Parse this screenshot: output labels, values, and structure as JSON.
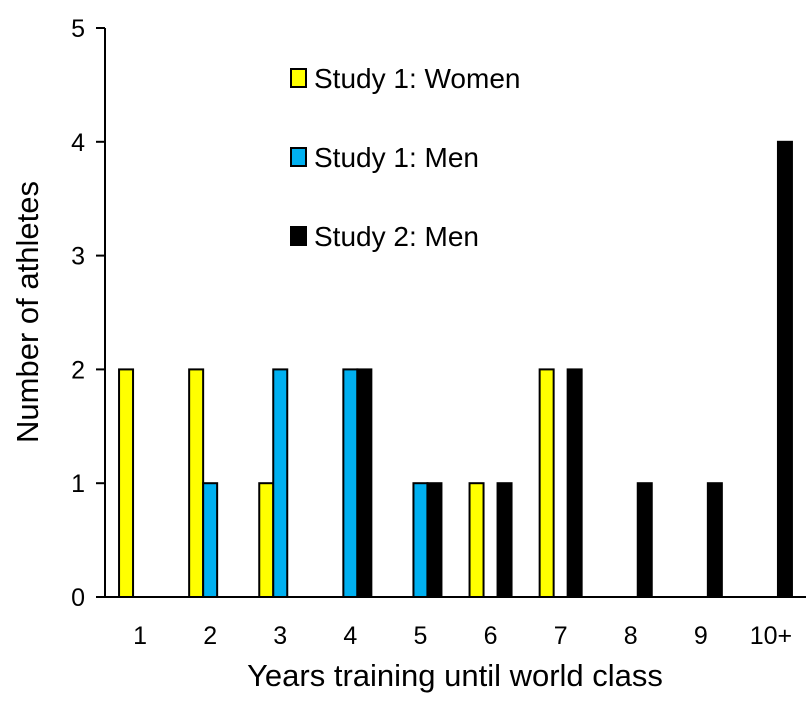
{
  "chart_data": {
    "type": "bar",
    "xlabel": "Years training until world class",
    "ylabel": "Number of athletes",
    "categories": [
      "1",
      "2",
      "3",
      "4",
      "5",
      "6",
      "7",
      "8",
      "9",
      "10+"
    ],
    "ylim": [
      0,
      5
    ],
    "yticks": [
      "0",
      "1",
      "2",
      "3",
      "4",
      "5"
    ],
    "grid": false,
    "legend_position": "top-left",
    "series": [
      {
        "name": "Study 1: Women",
        "color": "#FFFF00",
        "values": [
          2,
          2,
          1,
          0,
          0,
          1,
          2,
          0,
          0,
          0
        ]
      },
      {
        "name": "Study 1: Men",
        "color": "#00B0F0",
        "values": [
          0,
          1,
          2,
          2,
          1,
          0,
          0,
          0,
          0,
          0
        ]
      },
      {
        "name": "Study 2: Men",
        "color": "#000000",
        "values": [
          0,
          0,
          0,
          2,
          1,
          1,
          2,
          1,
          1,
          4
        ]
      }
    ]
  }
}
